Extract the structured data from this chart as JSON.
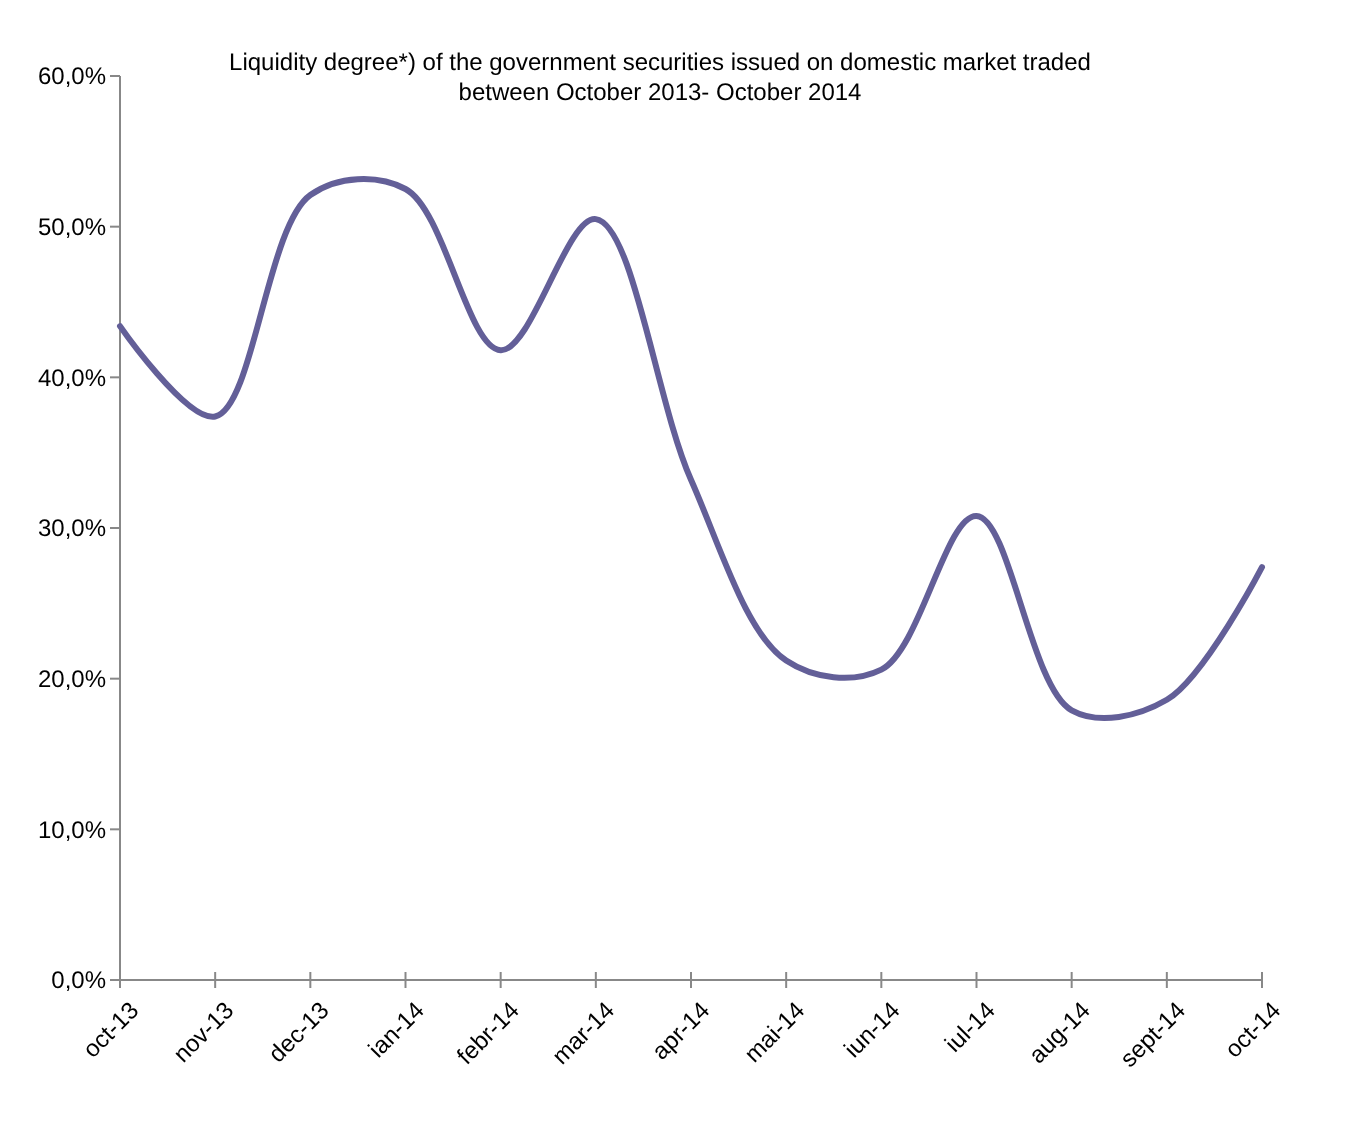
{
  "chart_data": {
    "type": "line",
    "title": "Liquidity degree*) of the government securities issued on domestic market traded\nbetween October 2013- October 2014",
    "categories": [
      "oct-13",
      "nov-13",
      "dec-13",
      "ian-14",
      "febr-14",
      "mar-14",
      "apr-14",
      "mai-14",
      "iun-14",
      "iul-14",
      "aug-14",
      "sept-14",
      "oct-14"
    ],
    "series": [
      {
        "color": "#635f98",
        "values": [
          43.4,
          37.4,
          52.1,
          52.5,
          41.8,
          50.5,
          33.2,
          21.2,
          20.6,
          30.8,
          17.9,
          18.6,
          27.4
        ]
      }
    ],
    "ylim": [
      0,
      60
    ],
    "yticks": [
      {
        "value": 0,
        "label": "0,0%"
      },
      {
        "value": 10,
        "label": "10,0%"
      },
      {
        "value": 20,
        "label": "20,0%"
      },
      {
        "value": 30,
        "label": "30,0%"
      },
      {
        "value": 40,
        "label": "40,0%"
      },
      {
        "value": 50,
        "label": "50,0%"
      },
      {
        "value": 60,
        "label": "60,0%"
      }
    ],
    "grid": false,
    "marker": "none",
    "line_style": "solid"
  }
}
